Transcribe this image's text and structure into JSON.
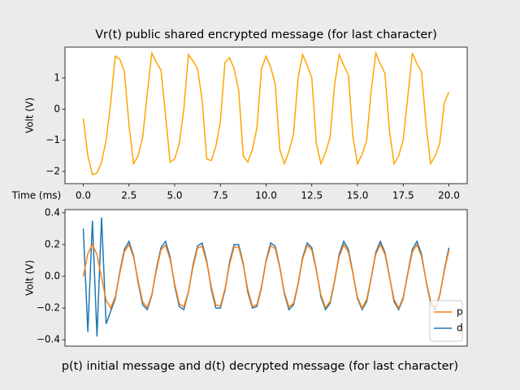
{
  "chart_data": [
    {
      "type": "line",
      "title": "Vr(t) public shared encrypted message (for last character)",
      "xlabel": "Time (ms)",
      "ylabel": "Volt (V)",
      "x": [
        0,
        0.25,
        0.5,
        0.75,
        1,
        1.25,
        1.5,
        1.75,
        2,
        2.25,
        2.5,
        2.75,
        3,
        3.25,
        3.5,
        3.75,
        4,
        4.25,
        4.5,
        4.75,
        5,
        5.25,
        5.5,
        5.75,
        6,
        6.25,
        6.5,
        6.75,
        7,
        7.25,
        7.5,
        7.75,
        8,
        8.25,
        8.5,
        8.75,
        9,
        9.25,
        9.5,
        9.75,
        10,
        10.25,
        10.5,
        10.75,
        11,
        11.25,
        11.5,
        11.75,
        12,
        12.25,
        12.5,
        12.75,
        13,
        13.25,
        13.5,
        13.75,
        14,
        14.25,
        14.5,
        14.75,
        15,
        15.25,
        15.5,
        15.75,
        16,
        16.25,
        16.5,
        16.75,
        17,
        17.25,
        17.5,
        17.75,
        18,
        18.25,
        18.5,
        18.75,
        19,
        19.25,
        19.5,
        19.75,
        20
      ],
      "series": [
        {
          "color": "#ffa500",
          "values": [
            -0.3,
            -1.5,
            -2.1,
            -2.05,
            -1.7,
            -1.0,
            0.2,
            1.7,
            1.6,
            1.2,
            -0.5,
            -1.75,
            -1.5,
            -0.9,
            0.5,
            1.8,
            1.5,
            1.25,
            -0.2,
            -1.7,
            -1.6,
            -1.1,
            0.0,
            1.75,
            1.55,
            1.3,
            0.3,
            -1.6,
            -1.65,
            -1.2,
            -0.4,
            1.5,
            1.65,
            1.3,
            0.6,
            -1.5,
            -1.7,
            -1.3,
            -0.6,
            1.3,
            1.7,
            1.35,
            0.8,
            -1.3,
            -1.75,
            -1.35,
            -0.8,
            1.0,
            1.75,
            1.4,
            1.0,
            -1.1,
            -1.75,
            -1.4,
            -0.9,
            0.8,
            1.75,
            1.4,
            1.1,
            -0.9,
            -1.75,
            -1.45,
            -1.0,
            0.6,
            1.8,
            1.45,
            1.15,
            -0.7,
            -1.75,
            -1.5,
            -1.0,
            0.4,
            1.8,
            1.45,
            1.2,
            -0.5,
            -1.75,
            -1.5,
            -1.1,
            0.2,
            0.55
          ]
        }
      ],
      "xlim": [
        -1,
        21
      ],
      "ylim": [
        -2.39,
        1.99
      ],
      "xticks": [
        {
          "value": 0,
          "label": "0.0"
        },
        {
          "value": 2.5,
          "label": "2.5"
        },
        {
          "value": 5,
          "label": "5.0"
        },
        {
          "value": 7.5,
          "label": "7.5"
        },
        {
          "value": 10,
          "label": "10.0"
        },
        {
          "value": 12.5,
          "label": "12.5"
        },
        {
          "value": 15,
          "label": "15.0"
        },
        {
          "value": 17.5,
          "label": "17.5"
        },
        {
          "value": 20,
          "label": "20.0"
        }
      ],
      "yticks": [
        {
          "value": -2,
          "label": "−2"
        },
        {
          "value": -1,
          "label": "−1"
        },
        0,
        1
      ]
    },
    {
      "type": "line",
      "xlabel": "p(t) initial message and d(t) decrypted message (for last character)",
      "ylabel": "Volt (V)",
      "x": [
        0,
        0.25,
        0.5,
        0.75,
        1,
        1.25,
        1.5,
        1.75,
        2,
        2.25,
        2.5,
        2.75,
        3,
        3.25,
        3.5,
        3.75,
        4,
        4.25,
        4.5,
        4.75,
        5,
        5.25,
        5.5,
        5.75,
        6,
        6.25,
        6.5,
        6.75,
        7,
        7.25,
        7.5,
        7.75,
        8,
        8.25,
        8.5,
        8.75,
        9,
        9.25,
        9.5,
        9.75,
        10,
        10.25,
        10.5,
        10.75,
        11,
        11.25,
        11.5,
        11.75,
        12,
        12.25,
        12.5,
        12.75,
        13,
        13.25,
        13.5,
        13.75,
        14,
        14.25,
        14.5,
        14.75,
        15,
        15.25,
        15.5,
        15.75,
        16,
        16.25,
        16.5,
        16.75,
        17,
        17.25,
        17.5,
        17.75,
        18,
        18.25,
        18.5,
        18.75,
        19,
        19.25,
        19.5,
        19.75,
        20
      ],
      "series": [
        {
          "name": "p",
          "color": "#ff7f0e",
          "values": [
            0,
            0.143,
            0.2,
            0.136,
            -0.01,
            -0.15,
            -0.199,
            -0.129,
            0.019,
            0.156,
            0.199,
            0.121,
            -0.029,
            -0.162,
            -0.197,
            -0.114,
            0.038,
            0.167,
            0.195,
            0.106,
            -0.048,
            -0.172,
            -0.193,
            -0.097,
            0.057,
            0.177,
            0.19,
            0.089,
            -0.066,
            -0.181,
            -0.187,
            -0.08,
            0.075,
            0.185,
            0.183,
            0.071,
            -0.084,
            -0.189,
            -0.179,
            -0.062,
            0.093,
            0.192,
            0.175,
            0.053,
            -0.101,
            -0.194,
            -0.17,
            -0.044,
            0.109,
            0.196,
            0.165,
            0.034,
            -0.117,
            -0.198,
            -0.159,
            -0.024,
            0.125,
            0.199,
            0.153,
            0.015,
            -0.132,
            -0.2,
            -0.147,
            -0.006,
            0.139,
            0.2,
            0.14,
            -0.005,
            -0.146,
            -0.2,
            -0.133,
            0.014,
            0.153,
            0.199,
            0.126,
            -0.024,
            -0.159,
            -0.198,
            -0.118,
            0.033,
            0.164
          ]
        },
        {
          "name": "d",
          "color": "#1f77b4",
          "values": [
            0.3,
            -0.35,
            0.35,
            -0.38,
            0.37,
            -0.3,
            -0.22,
            -0.14,
            0.03,
            0.17,
            0.22,
            0.13,
            -0.04,
            -0.18,
            -0.21,
            -0.12,
            0.05,
            0.18,
            0.22,
            0.12,
            -0.06,
            -0.19,
            -0.21,
            -0.1,
            0.07,
            0.19,
            0.21,
            0.1,
            -0.08,
            -0.2,
            -0.2,
            -0.09,
            0.09,
            0.2,
            0.2,
            0.08,
            -0.1,
            -0.2,
            -0.19,
            -0.07,
            0.1,
            0.21,
            0.19,
            0.06,
            -0.11,
            -0.21,
            -0.18,
            -0.05,
            0.12,
            0.21,
            0.18,
            0.04,
            -0.13,
            -0.21,
            -0.17,
            -0.03,
            0.14,
            0.22,
            0.17,
            0.02,
            -0.14,
            -0.21,
            -0.16,
            -0.01,
            0.15,
            0.22,
            0.15,
            0.0,
            -0.16,
            -0.21,
            -0.14,
            0.02,
            0.17,
            0.22,
            0.14,
            -0.03,
            -0.17,
            -0.21,
            -0.12,
            0.04,
            0.18
          ]
        }
      ],
      "xlim": [
        -1,
        21
      ],
      "ylim": [
        -0.44,
        0.42
      ],
      "yticks": [
        {
          "value": -0.4,
          "label": "−0.4"
        },
        {
          "value": -0.2,
          "label": "−0.2"
        },
        {
          "value": 0,
          "label": "0.0"
        },
        {
          "value": 0.2,
          "label": "0.2"
        },
        {
          "value": 0.4,
          "label": "0.4"
        }
      ],
      "legend": "lower right"
    }
  ]
}
